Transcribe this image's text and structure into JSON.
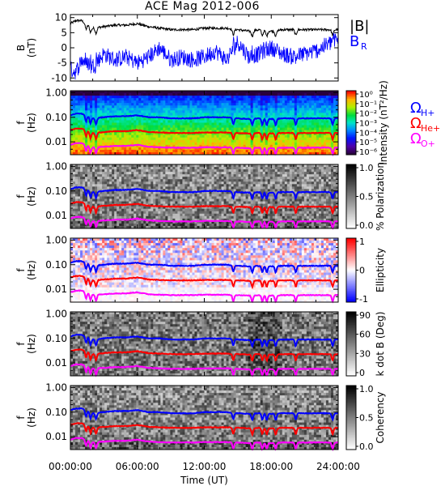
{
  "figure": {
    "title": "ACE Mag 2012-006"
  },
  "time_axis": {
    "label": "Time (UT)",
    "ticks": [
      "00:00:00",
      "06:00:00",
      "12:00:00",
      "18:00:00",
      "24:00:00"
    ],
    "range_hours": [
      0,
      24
    ]
  },
  "chart_data": [
    {
      "type": "line",
      "panel": "magnetic-field",
      "ylabel": "B (nT)",
      "ylim": [
        -11,
        11
      ],
      "yticks": [
        "10",
        "5",
        "0",
        "-5",
        "-10"
      ],
      "series": [
        {
          "name": "|B|",
          "color": "#000000",
          "x": [
            0,
            0.5,
            1,
            2,
            3,
            4,
            5,
            6,
            7,
            8,
            9,
            10,
            11,
            12,
            13,
            14,
            15,
            16,
            17,
            18,
            19,
            20,
            21,
            22,
            23,
            24
          ],
          "values": [
            8,
            9,
            9,
            6.5,
            7,
            7.5,
            7.5,
            8,
            7,
            6.5,
            6,
            6,
            6,
            6.5,
            6.5,
            6.5,
            6,
            5.5,
            6,
            5.5,
            6,
            6,
            6,
            6,
            6,
            6
          ]
        },
        {
          "name": "B_R",
          "color": "#0000ff",
          "x": [
            0,
            0.5,
            1,
            2,
            3,
            4,
            5,
            6,
            7,
            8,
            9,
            10,
            11,
            12,
            13,
            14,
            15,
            16,
            17,
            18,
            19,
            20,
            21,
            22,
            23,
            24
          ],
          "values": [
            -7,
            -8,
            -4,
            -6,
            -2,
            -4,
            -3,
            -5,
            -3,
            0,
            -4,
            -3,
            -4,
            -3,
            -1,
            -4,
            2,
            -3,
            -2,
            0,
            -2,
            -3,
            -2,
            -1,
            1,
            3
          ]
        }
      ]
    },
    {
      "type": "heatmap",
      "panel": "power-spectrum",
      "ylabel": "f (Hz)",
      "ylim": [
        0.003,
        1.2
      ],
      "yscale": "log",
      "yticks": [
        "1.00",
        "0.10",
        "0.01"
      ],
      "colorbar": {
        "label": "Intensity (nT²/Hz)",
        "ticks": [
          "10⁰",
          "10⁻¹",
          "10⁻²",
          "10⁻³",
          "10⁻⁴",
          "10⁻⁵",
          "10⁻⁶"
        ],
        "scale": "rainbow"
      }
    },
    {
      "type": "heatmap",
      "panel": "polarization",
      "ylabel": "f (Hz)",
      "ylim": [
        0.003,
        1.2
      ],
      "yscale": "log",
      "yticks": [
        "1.00",
        "0.10",
        "0.01"
      ],
      "colorbar": {
        "label": "% Polarization",
        "ticks": [
          "1.0",
          "0.5",
          "0.0"
        ],
        "scale": "gray"
      }
    },
    {
      "type": "heatmap",
      "panel": "ellipticity",
      "ylabel": "f (Hz)",
      "ylim": [
        0.003,
        1.2
      ],
      "yscale": "log",
      "yticks": [
        "1.00",
        "0.10",
        "0.01"
      ],
      "colorbar": {
        "label": "Ellipticity",
        "ticks": [
          "1",
          "0",
          "-1"
        ],
        "scale": "bwr"
      }
    },
    {
      "type": "heatmap",
      "panel": "k-dot-b",
      "ylabel": "f (Hz)",
      "ylim": [
        0.003,
        1.2
      ],
      "yscale": "log",
      "yticks": [
        "1.00",
        "0.10",
        "0.01"
      ],
      "colorbar": {
        "label": "k dot B (Deg)",
        "ticks": [
          "90",
          "60",
          "30",
          "0"
        ],
        "scale": "gray"
      }
    },
    {
      "type": "heatmap",
      "panel": "coherency",
      "ylabel": "f (Hz)",
      "ylim": [
        0.003,
        1.2
      ],
      "yscale": "log",
      "yticks": [
        "1.00",
        "0.10",
        "0.01"
      ],
      "colorbar": {
        "label": "Coherency",
        "ticks": [
          "1.0",
          "0.5",
          "0.0"
        ],
        "scale": "gray"
      }
    }
  ],
  "gyrofrequency_lines": {
    "legend": [
      {
        "name": "Ω",
        "sub": "H+",
        "color": "#0000ff"
      },
      {
        "name": "Ω",
        "sub": "He+",
        "color": "#ff0000"
      },
      {
        "name": "Ω",
        "sub": "O+",
        "color": "#ff00ff"
      }
    ],
    "x": [
      0,
      0.5,
      1,
      2,
      3,
      4,
      5,
      6,
      7,
      8,
      9,
      10,
      11,
      12,
      13,
      14,
      15,
      16,
      17,
      18,
      19,
      20,
      21,
      22,
      23,
      24
    ],
    "H+": [
      0.12,
      0.14,
      0.14,
      0.09,
      0.1,
      0.11,
      0.11,
      0.12,
      0.1,
      0.1,
      0.09,
      0.09,
      0.09,
      0.1,
      0.1,
      0.1,
      0.09,
      0.085,
      0.09,
      0.085,
      0.09,
      0.09,
      0.09,
      0.09,
      0.09,
      0.09
    ],
    "He+": [
      0.03,
      0.035,
      0.035,
      0.023,
      0.025,
      0.027,
      0.027,
      0.03,
      0.025,
      0.024,
      0.023,
      0.023,
      0.023,
      0.024,
      0.024,
      0.024,
      0.023,
      0.022,
      0.023,
      0.022,
      0.023,
      0.023,
      0.023,
      0.023,
      0.023,
      0.023
    ],
    "O+": [
      0.0075,
      0.0088,
      0.0088,
      0.006,
      0.0063,
      0.0068,
      0.0068,
      0.0075,
      0.0063,
      0.006,
      0.0058,
      0.0058,
      0.0058,
      0.006,
      0.006,
      0.006,
      0.0058,
      0.0055,
      0.0058,
      0.0055,
      0.0058,
      0.0058,
      0.0058,
      0.0058,
      0.0058,
      0.0058
    ]
  }
}
